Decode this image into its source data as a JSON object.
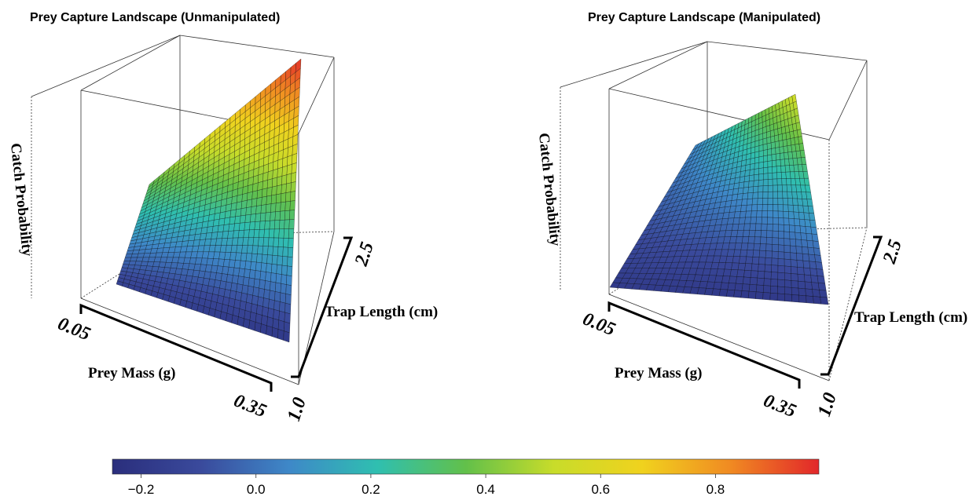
{
  "chart_data": [
    {
      "type": "surface3d",
      "title": "Prey Capture Landscape (Unmanipulated)",
      "zlabel": "Catch Probability",
      "xlabel": "Prey Mass (g)",
      "ylabel": "Trap Length (cm)",
      "x_ticks": [
        "0.05",
        "0.35"
      ],
      "y_ticks": [
        "1.0",
        "2.5"
      ],
      "xlim": [
        0.05,
        0.35
      ],
      "ylim": [
        1.0,
        2.5
      ],
      "z_range": [
        -0.2,
        0.97
      ],
      "corner_values": {
        "mass_0.05_length_1.0": -0.15,
        "mass_0.35_length_1.0": -0.2,
        "mass_0.05_length_2.5": 0.35,
        "mass_0.35_length_2.5": 0.97
      }
    },
    {
      "type": "surface3d",
      "title": "Prey Capture Landscape (Manipulated)",
      "zlabel": "Catch Probability",
      "xlabel": "Prey Mass (g)",
      "ylabel": "Trap Length (cm)",
      "x_ticks": [
        "0.05",
        "0.35"
      ],
      "y_ticks": [
        "1.0",
        "2.5"
      ],
      "xlim": [
        0.05,
        0.35
      ],
      "ylim": [
        1.0,
        2.5
      ],
      "z_range": [
        -0.2,
        0.55
      ],
      "corner_values": {
        "mass_0.05_length_1.0": -0.18,
        "mass_0.35_length_1.0": -0.2,
        "mass_0.05_length_2.5": 0.05,
        "mass_0.35_length_2.5": 0.55
      }
    }
  ],
  "colorbar": {
    "ticks": [
      "−0.2",
      "0.0",
      "0.2",
      "0.4",
      "0.6",
      "0.8"
    ],
    "tick_values": [
      -0.2,
      0.0,
      0.2,
      0.4,
      0.6,
      0.8
    ],
    "range": [
      -0.25,
      0.98
    ],
    "colors": [
      "#2a2e7c",
      "#3a4a9c",
      "#3e88c8",
      "#2fbfb0",
      "#62c04a",
      "#c8dc2a",
      "#f0d21e",
      "#f08a22",
      "#e2272a"
    ]
  }
}
